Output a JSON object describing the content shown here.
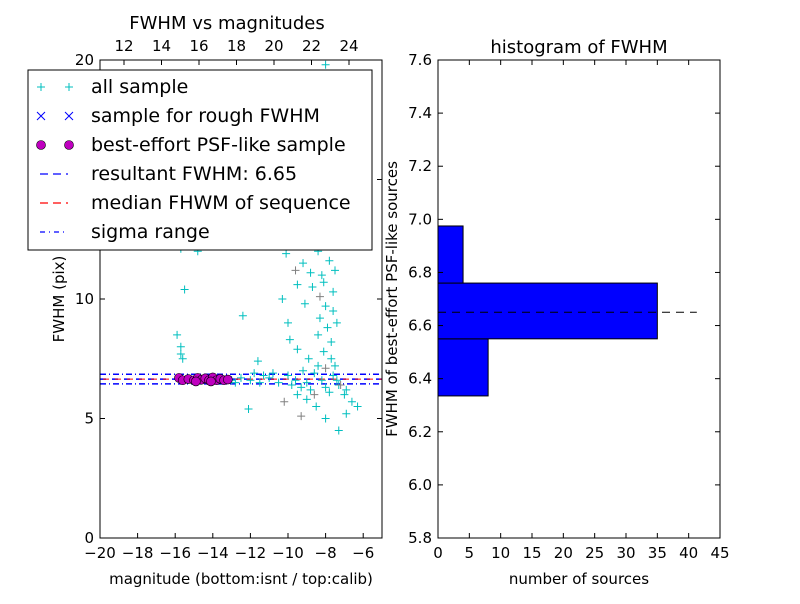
{
  "chart_data": [
    {
      "type": "scatter",
      "title": "FWHM vs magnitudes",
      "xlabel": "magnitude (bottom:isnt / top:calib)",
      "ylabel": "FWHM (pix)",
      "xlim": [
        -20,
        -5
      ],
      "ylim": [
        0,
        20
      ],
      "xticks": [
        -20,
        -18,
        -16,
        -14,
        -12,
        -10,
        -8,
        -6
      ],
      "xtick_labels": [
        "−20",
        "−18",
        "−16",
        "−14",
        "−12",
        "−10",
        "−8",
        "−6"
      ],
      "yticks": [
        0,
        5,
        10,
        15,
        20
      ],
      "ytick_labels": [
        "0",
        "5",
        "10",
        "15",
        "20"
      ],
      "top_xlim": [
        10.72,
        25.76
      ],
      "top_xticks": [
        12,
        14,
        16,
        18,
        20,
        22,
        24
      ],
      "top_xtick_labels": [
        "12",
        "14",
        "16",
        "18",
        "20",
        "22",
        "24"
      ],
      "legend": {
        "placement": "upper-left",
        "entries": [
          {
            "label": "all sample",
            "marker": "plus",
            "color": "#00bfbf"
          },
          {
            "label": "sample for rough FWHM",
            "marker": "x",
            "color": "#0000ff"
          },
          {
            "label": "best-effort PSF-like sample",
            "marker": "circle",
            "color": "#bf00bf"
          },
          {
            "label": "resultant FWHM: 6.65",
            "marker": "dashed",
            "color": "#0000ff"
          },
          {
            "label": "median FHWM of sequence",
            "marker": "dashed",
            "color": "#ff0000"
          },
          {
            "label": "sigma range",
            "marker": "dashdot",
            "color": "#0000ff"
          }
        ]
      },
      "hlines": {
        "resultant": 6.65,
        "median": 6.65,
        "sigma_low": 6.45,
        "sigma_high": 6.85
      },
      "series": [
        {
          "name": "all sample",
          "color": "#00bfbf",
          "points": [
            [
              -15.7,
              12.6
            ],
            [
              -15.7,
              12.1
            ],
            [
              -15.5,
              10.4
            ],
            [
              -15.9,
              8.5
            ],
            [
              -15.7,
              8.0
            ],
            [
              -15.6,
              7.5
            ],
            [
              -15.7,
              7.7
            ],
            [
              -14.9,
              12.5
            ],
            [
              -14.8,
              12.0
            ],
            [
              -12.4,
              9.3
            ],
            [
              -11.6,
              7.4
            ],
            [
              -10.2,
              12.4
            ],
            [
              -10.1,
              11.9
            ],
            [
              -9.5,
              10.6
            ],
            [
              -9.2,
              11.5
            ],
            [
              -9.0,
              12.3
            ],
            [
              -8.6,
              13.2
            ],
            [
              -8.3,
              12.8
            ],
            [
              -8.0,
              12.2
            ],
            [
              -7.8,
              11.6
            ],
            [
              -8.2,
              11.0
            ],
            [
              -7.6,
              10.3
            ],
            [
              -8.0,
              9.7
            ],
            [
              -7.4,
              9.0
            ],
            [
              -8.4,
              8.5
            ],
            [
              -7.7,
              8.2
            ],
            [
              -9.9,
              8.3
            ],
            [
              -9.5,
              7.9
            ],
            [
              -10.0,
              9.0
            ],
            [
              -10.3,
              10.0
            ],
            [
              -8.2,
              14.0
            ],
            [
              -8.5,
              16.0
            ],
            [
              -9.0,
              18.0
            ],
            [
              -8.0,
              19.8
            ],
            [
              -7.2,
              13.5
            ],
            [
              -7.9,
              15.0
            ],
            [
              -8.7,
              10.5
            ],
            [
              -7.5,
              7.2
            ],
            [
              -6.3,
              5.5
            ],
            [
              -6.9,
              5.2
            ],
            [
              -7.3,
              4.5
            ],
            [
              -8.0,
              5.0
            ],
            [
              -8.5,
              5.5
            ],
            [
              -9.0,
              5.8
            ],
            [
              -12.1,
              5.4
            ],
            [
              -9.5,
              6.0
            ],
            [
              -11.8,
              6.9
            ],
            [
              -13.0,
              6.6
            ],
            [
              -12.5,
              6.7
            ],
            [
              -12.0,
              6.6
            ],
            [
              -11.5,
              6.5
            ],
            [
              -11.0,
              6.7
            ],
            [
              -10.5,
              6.5
            ],
            [
              -10.0,
              6.8
            ],
            [
              -9.8,
              6.4
            ],
            [
              -9.2,
              7.0
            ],
            [
              -8.8,
              6.2
            ],
            [
              -8.4,
              7.2
            ],
            [
              -8.0,
              6.3
            ],
            [
              -7.6,
              6.8
            ],
            [
              -7.0,
              6.0
            ],
            [
              -6.6,
              5.7
            ],
            [
              -9.6,
              6.6
            ],
            [
              -9.0,
              6.5
            ],
            [
              -8.6,
              6.9
            ],
            [
              -8.2,
              6.6
            ],
            [
              -7.8,
              6.1
            ],
            [
              -7.3,
              6.4
            ],
            [
              -10.8,
              6.9
            ],
            [
              -11.3,
              6.8
            ],
            [
              -12.8,
              6.5
            ],
            [
              -9.3,
              6.3
            ],
            [
              -8.9,
              7.5
            ],
            [
              -8.1,
              7.8
            ],
            [
              -7.7,
              7.5
            ],
            [
              -7.4,
              6.6
            ],
            [
              -6.9,
              6.2
            ],
            [
              -7.9,
              8.8
            ],
            [
              -8.3,
              9.2
            ],
            [
              -7.6,
              9.5
            ],
            [
              -8.1,
              10.7
            ],
            [
              -7.5,
              11.2
            ],
            [
              -7.9,
              13.0
            ],
            [
              -8.4,
              12.0
            ],
            [
              -8.8,
              11.1
            ],
            [
              -9.1,
              9.8
            ]
          ]
        },
        {
          "name": "gray sample",
          "color": "#808080",
          "points": [
            [
              -10.2,
              5.7
            ],
            [
              -9.3,
              5.1
            ],
            [
              -8.6,
              6.0
            ],
            [
              -8.0,
              7.1
            ],
            [
              -7.2,
              6.4
            ],
            [
              -8.3,
              10.1
            ],
            [
              -9.6,
              11.2
            ],
            [
              -14.6,
              12.3
            ],
            [
              -7.7,
              12.5
            ]
          ]
        },
        {
          "name": "best-effort PSF-like sample",
          "color": "#bf00bf",
          "points": [
            [
              -15.8,
              6.7
            ],
            [
              -15.6,
              6.6
            ],
            [
              -15.3,
              6.65
            ],
            [
              -15.0,
              6.6
            ],
            [
              -14.8,
              6.7
            ],
            [
              -14.6,
              6.62
            ],
            [
              -14.4,
              6.68
            ],
            [
              -14.2,
              6.6
            ],
            [
              -14.0,
              6.72
            ],
            [
              -13.8,
              6.6
            ],
            [
              -13.6,
              6.66
            ],
            [
              -13.4,
              6.6
            ],
            [
              -13.2,
              6.63
            ],
            [
              -14.9,
              6.55
            ],
            [
              -14.1,
              6.55
            ]
          ]
        }
      ]
    },
    {
      "type": "bar",
      "orientation": "horizontal",
      "title": "histogram of FWHM",
      "xlabel": "number of sources",
      "ylabel": "FWHM of best-effort PSF-like sources",
      "xlim": [
        0,
        45
      ],
      "ylim": [
        5.8,
        7.6
      ],
      "xticks": [
        0,
        5,
        10,
        15,
        20,
        25,
        30,
        35,
        40,
        45
      ],
      "xtick_labels": [
        "0",
        "5",
        "10",
        "15",
        "20",
        "25",
        "30",
        "35",
        "40",
        "45"
      ],
      "yticks": [
        5.8,
        6.0,
        6.2,
        6.4,
        6.6,
        6.8,
        7.0,
        7.2,
        7.4,
        7.6
      ],
      "ytick_labels": [
        "5.8",
        "6.0",
        "6.2",
        "6.4",
        "6.6",
        "6.8",
        "7.0",
        "7.2",
        "7.4",
        "7.6"
      ],
      "bins": [
        {
          "from": 6.335,
          "to": 6.55,
          "count": 8
        },
        {
          "from": 6.55,
          "to": 6.76,
          "count": 35
        },
        {
          "from": 6.76,
          "to": 6.975,
          "count": 4
        }
      ],
      "bar_color": "#0000ff",
      "reference_line": {
        "value": 6.65,
        "extent": 41.3,
        "style": "dashed",
        "color": "#000000"
      }
    }
  ]
}
